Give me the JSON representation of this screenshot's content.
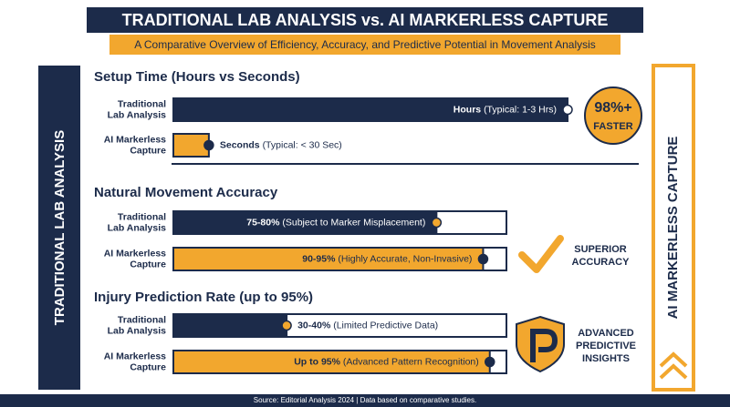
{
  "header": {
    "title": "TRADITIONAL LAB ANALYSIS vs. AI MARKERLESS CAPTURE",
    "subtitle": "A Comparative Overview of Efficiency, Accuracy, and Predictive Potential in Movement Analysis"
  },
  "side_labels": {
    "left": "TRADITIONAL LAB ANALYSIS",
    "right": "AI MARKERLESS CAPTURE"
  },
  "sections": [
    {
      "title": "Setup Time (Hours vs Seconds)",
      "track": false,
      "rows": [
        {
          "label": [
            "Traditional",
            "Lab Analysis"
          ],
          "value": "Hours",
          "note": "(Typical: 1-3 Hrs)",
          "fill": 100,
          "color": "#1c2b4a"
        },
        {
          "label": [
            "AI Markerless",
            "Capture"
          ],
          "value": "Seconds",
          "note": "(Typical: < 30 Sec)",
          "fill": 9,
          "color": "#f2a72e"
        }
      ],
      "badge": [
        "98%+",
        "FASTER"
      ]
    },
    {
      "title": "Natural Movement Accuracy",
      "track": true,
      "rows": [
        {
          "label": [
            "Traditional",
            "Lab Analysis"
          ],
          "value": "75-80%",
          "note": "(Subject to Marker Misplacement)",
          "fill": 79,
          "color": "#1c2b4a"
        },
        {
          "label": [
            "AI Markerless",
            "Capture"
          ],
          "value": "90-95%",
          "note": "(Highly Accurate, Non-Invasive)",
          "fill": 93,
          "color": "#f2a72e"
        }
      ],
      "badge": [
        "SUPERIOR",
        "ACCURACY"
      ]
    },
    {
      "title": "Injury Prediction Rate (up to 95%)",
      "track": true,
      "rows": [
        {
          "label": [
            "Traditional",
            "Lab Analysis"
          ],
          "value": "30-40%",
          "note": "(Limited Predictive Data)",
          "fill": 34,
          "color": "#1c2b4a"
        },
        {
          "label": [
            "AI Markerless",
            "Capture"
          ],
          "value": "Up to 95%",
          "note": "(Advanced Pattern Recognition)",
          "fill": 95,
          "color": "#f2a72e"
        }
      ],
      "badge": [
        "ADVANCED",
        "PREDICTIVE",
        "INSIGHTS"
      ]
    }
  ],
  "footer": "Source: Editorial Analysis 2024 | Data based on comparative studies."
}
